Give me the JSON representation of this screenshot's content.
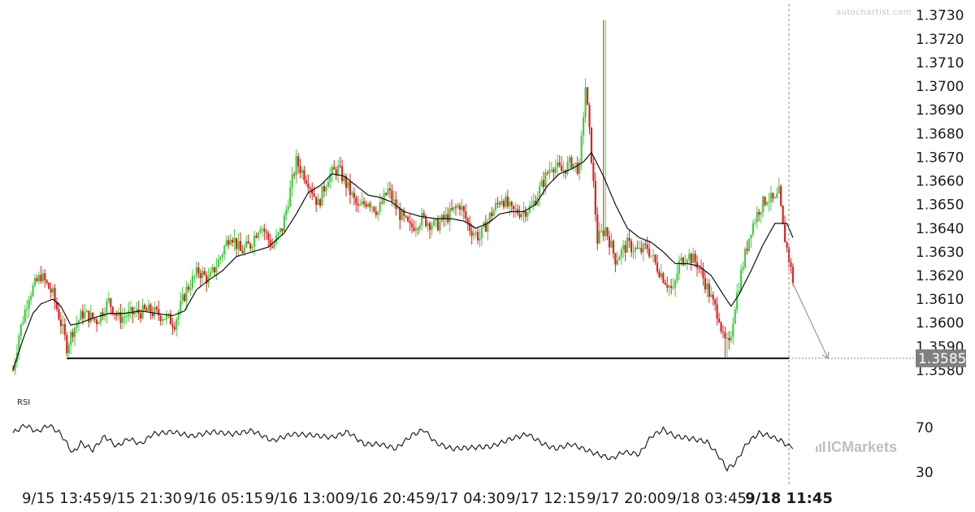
{
  "watermark": "autochartist.com",
  "broker_logo": "ICMarkets",
  "rsi_label": "RSI",
  "colors": {
    "up": "#44cc44",
    "down": "#dd2222",
    "ma": "#111111",
    "level": "#111111",
    "price_box": "#808080"
  },
  "chart_data": {
    "type": "candlestick",
    "y_axis": {
      "ylim": [
        1.3575,
        1.3733
      ],
      "ticks": [
        "1.3580",
        "1.3590",
        "1.3600",
        "1.3610",
        "1.3620",
        "1.3630",
        "1.3640",
        "1.3650",
        "1.3660",
        "1.3670",
        "1.3680",
        "1.3690",
        "1.3700",
        "1.3710",
        "1.3720",
        "1.3730"
      ]
    },
    "x_axis": {
      "tick_labels": [
        "9/15 13:45",
        "9/15 21:30",
        "9/16 05:15",
        "9/16 13:00",
        "9/16 20:45",
        "9/17 04:30",
        "9/17 12:15",
        "9/17 20:00",
        "9/18 03:45",
        "9/18 11:45"
      ]
    },
    "support_level": {
      "value": 1.3585,
      "label": "1.3585"
    },
    "forecast_target": 1.3585,
    "price_anchors": [
      [
        0,
        1.358
      ],
      [
        3,
        1.3595
      ],
      [
        8,
        1.3612
      ],
      [
        14,
        1.362
      ],
      [
        20,
        1.3612
      ],
      [
        24,
        1.36
      ],
      [
        27,
        1.359
      ],
      [
        30,
        1.3597
      ],
      [
        35,
        1.3604
      ],
      [
        42,
        1.3601
      ],
      [
        48,
        1.3609
      ],
      [
        53,
        1.3602
      ],
      [
        60,
        1.3604
      ],
      [
        68,
        1.3605
      ],
      [
        75,
        1.3603
      ],
      [
        81,
        1.36
      ],
      [
        87,
        1.3614
      ],
      [
        93,
        1.3622
      ],
      [
        98,
        1.3618
      ],
      [
        103,
        1.3626
      ],
      [
        109,
        1.3638
      ],
      [
        114,
        1.363
      ],
      [
        119,
        1.3633
      ],
      [
        124,
        1.3642
      ],
      [
        130,
        1.3632
      ],
      [
        135,
        1.364
      ],
      [
        142,
        1.3668
      ],
      [
        148,
        1.366
      ],
      [
        153,
        1.365
      ],
      [
        158,
        1.3662
      ],
      [
        163,
        1.3665
      ],
      [
        168,
        1.3657
      ],
      [
        173,
        1.3648
      ],
      [
        178,
        1.3652
      ],
      [
        183,
        1.3647
      ],
      [
        188,
        1.3656
      ],
      [
        193,
        1.3647
      ],
      [
        199,
        1.364
      ],
      [
        205,
        1.3644
      ],
      [
        212,
        1.3641
      ],
      [
        218,
        1.3645
      ],
      [
        224,
        1.365
      ],
      [
        229,
        1.364
      ],
      [
        234,
        1.3636
      ],
      [
        239,
        1.3645
      ],
      [
        245,
        1.3653
      ],
      [
        250,
        1.3647
      ],
      [
        255,
        1.3647
      ],
      [
        260,
        1.3649
      ],
      [
        265,
        1.3658
      ],
      [
        270,
        1.3667
      ],
      [
        275,
        1.3664
      ],
      [
        280,
        1.3668
      ],
      [
        284,
        1.3665
      ],
      [
        287,
        1.37
      ],
      [
        290,
        1.367
      ],
      [
        293,
        1.3635
      ],
      [
        297,
        1.364
      ],
      [
        302,
        1.3627
      ],
      [
        308,
        1.3633
      ],
      [
        314,
        1.363
      ],
      [
        318,
        1.3632
      ],
      [
        322,
        1.3625
      ],
      [
        327,
        1.3618
      ],
      [
        331,
        1.3613
      ],
      [
        334,
        1.3625
      ],
      [
        338,
        1.3629
      ],
      [
        343,
        1.3625
      ],
      [
        347,
        1.3617
      ],
      [
        351,
        1.3608
      ],
      [
        354,
        1.3603
      ],
      [
        356,
        1.3593
      ],
      [
        359,
        1.359
      ],
      [
        362,
        1.3608
      ],
      [
        366,
        1.3625
      ],
      [
        370,
        1.364
      ],
      [
        374,
        1.3648
      ],
      [
        378,
        1.3653
      ],
      [
        382,
        1.3651
      ],
      [
        384,
        1.3655
      ],
      [
        386,
        1.364
      ],
      [
        389,
        1.3627
      ],
      [
        391,
        1.3618
      ]
    ],
    "ma_anchors": [
      [
        0,
        1.358
      ],
      [
        5,
        1.3593
      ],
      [
        10,
        1.3604
      ],
      [
        14,
        1.3608
      ],
      [
        20,
        1.361
      ],
      [
        24,
        1.3607
      ],
      [
        29,
        1.3599
      ],
      [
        34,
        1.36
      ],
      [
        40,
        1.3602
      ],
      [
        48,
        1.3604
      ],
      [
        56,
        1.3604
      ],
      [
        64,
        1.3605
      ],
      [
        72,
        1.3604
      ],
      [
        80,
        1.3603
      ],
      [
        86,
        1.3605
      ],
      [
        92,
        1.3614
      ],
      [
        98,
        1.3618
      ],
      [
        105,
        1.3622
      ],
      [
        112,
        1.3628
      ],
      [
        120,
        1.363
      ],
      [
        128,
        1.3632
      ],
      [
        136,
        1.3638
      ],
      [
        142,
        1.3646
      ],
      [
        148,
        1.3655
      ],
      [
        154,
        1.3658
      ],
      [
        160,
        1.3663
      ],
      [
        166,
        1.3662
      ],
      [
        172,
        1.3658
      ],
      [
        178,
        1.3654
      ],
      [
        184,
        1.3653
      ],
      [
        190,
        1.3651
      ],
      [
        196,
        1.3647
      ],
      [
        204,
        1.3645
      ],
      [
        212,
        1.3644
      ],
      [
        220,
        1.3644
      ],
      [
        226,
        1.3643
      ],
      [
        232,
        1.364
      ],
      [
        238,
        1.3642
      ],
      [
        244,
        1.3646
      ],
      [
        250,
        1.3647
      ],
      [
        256,
        1.3647
      ],
      [
        262,
        1.365
      ],
      [
        268,
        1.3658
      ],
      [
        274,
        1.3663
      ],
      [
        280,
        1.3665
      ],
      [
        286,
        1.3668
      ],
      [
        290,
        1.3672
      ],
      [
        296,
        1.3662
      ],
      [
        302,
        1.365
      ],
      [
        308,
        1.364
      ],
      [
        314,
        1.3636
      ],
      [
        320,
        1.3634
      ],
      [
        326,
        1.363
      ],
      [
        332,
        1.3625
      ],
      [
        338,
        1.3625
      ],
      [
        344,
        1.3624
      ],
      [
        350,
        1.362
      ],
      [
        356,
        1.3612
      ],
      [
        360,
        1.3607
      ],
      [
        364,
        1.3612
      ],
      [
        370,
        1.3622
      ],
      [
        376,
        1.3633
      ],
      [
        382,
        1.3642
      ],
      [
        388,
        1.3642
      ],
      [
        391,
        1.3636
      ]
    ],
    "rsi": {
      "label": "RSI",
      "ticks": [
        "70",
        "30"
      ],
      "ylim": [
        20,
        85
      ],
      "anchors": [
        [
          0,
          65
        ],
        [
          6,
          72
        ],
        [
          12,
          66
        ],
        [
          18,
          72
        ],
        [
          24,
          64
        ],
        [
          30,
          47
        ],
        [
          34,
          56
        ],
        [
          40,
          50
        ],
        [
          46,
          62
        ],
        [
          52,
          53
        ],
        [
          58,
          60
        ],
        [
          64,
          55
        ],
        [
          70,
          64
        ],
        [
          80,
          66
        ],
        [
          90,
          62
        ],
        [
          100,
          66
        ],
        [
          110,
          64
        ],
        [
          120,
          67
        ],
        [
          130,
          58
        ],
        [
          140,
          64
        ],
        [
          150,
          63
        ],
        [
          160,
          61
        ],
        [
          168,
          66
        ],
        [
          176,
          55
        ],
        [
          184,
          55
        ],
        [
          192,
          51
        ],
        [
          200,
          63
        ],
        [
          206,
          68
        ],
        [
          212,
          56
        ],
        [
          220,
          51
        ],
        [
          230,
          52
        ],
        [
          240,
          53
        ],
        [
          250,
          60
        ],
        [
          258,
          64
        ],
        [
          266,
          55
        ],
        [
          272,
          51
        ],
        [
          280,
          55
        ],
        [
          290,
          48
        ],
        [
          300,
          42
        ],
        [
          306,
          48
        ],
        [
          314,
          46
        ],
        [
          320,
          62
        ],
        [
          326,
          68
        ],
        [
          332,
          62
        ],
        [
          340,
          60
        ],
        [
          348,
          57
        ],
        [
          354,
          44
        ],
        [
          358,
          33
        ],
        [
          362,
          38
        ],
        [
          368,
          56
        ],
        [
          374,
          65
        ],
        [
          380,
          62
        ],
        [
          385,
          58
        ],
        [
          389,
          53
        ]
      ]
    }
  }
}
